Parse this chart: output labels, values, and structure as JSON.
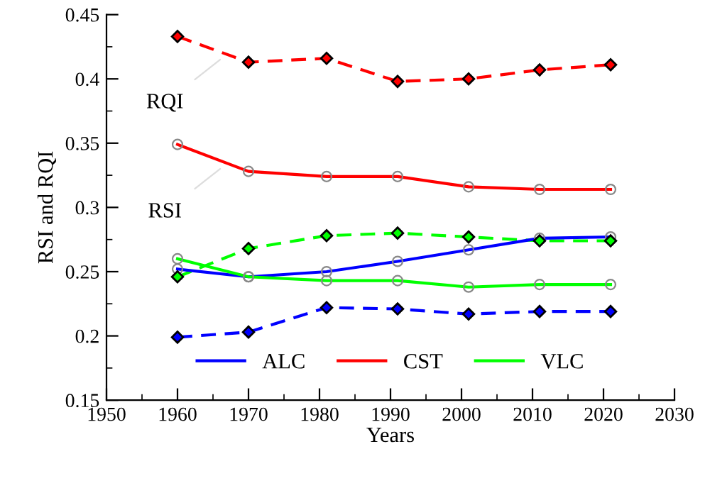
{
  "chart_data": {
    "type": "line",
    "xlabel": "Years",
    "ylabel": "RSI and RQI",
    "x": [
      1960,
      1970,
      1981,
      1991,
      2001,
      2011,
      2021
    ],
    "series": [
      {
        "name": "ALC",
        "color": "#0000ff",
        "line_style": "solid",
        "marker": "circle",
        "values": [
          0.252,
          0.246,
          0.25,
          0.258,
          0.267,
          0.276,
          0.277
        ]
      },
      {
        "name": "CST",
        "color": "#ff0000",
        "line_style": "solid",
        "marker": "circle",
        "values": [
          0.349,
          0.328,
          0.324,
          0.324,
          0.316,
          0.314,
          0.314
        ]
      },
      {
        "name": "VLC",
        "color": "#00ff00",
        "line_style": "solid",
        "marker": "circle",
        "values": [
          0.26,
          0.246,
          0.243,
          0.243,
          0.238,
          0.24,
          0.24
        ]
      },
      {
        "color": "#0000ff",
        "line_style": "dashed",
        "marker": "diamond",
        "values": [
          0.199,
          0.203,
          0.222,
          0.221,
          0.217,
          0.219,
          0.219
        ]
      },
      {
        "color": "#ff0000",
        "line_style": "dashed",
        "marker": "diamond",
        "values": [
          0.433,
          0.413,
          0.416,
          0.398,
          0.4,
          0.407,
          0.411
        ]
      },
      {
        "color": "#00ff00",
        "line_style": "dashed",
        "marker": "diamond",
        "values": [
          0.246,
          0.268,
          0.278,
          0.28,
          0.277,
          0.274,
          0.274
        ]
      }
    ],
    "annotations": [
      {
        "text": "RQI",
        "x": 1966,
        "y": 0.415
      },
      {
        "text": "RSI",
        "x": 1966,
        "y": 0.33
      }
    ],
    "xlim": [
      1950,
      2030
    ],
    "xticks": [
      1950,
      1960,
      1970,
      1980,
      1990,
      2000,
      2010,
      2020,
      2030
    ],
    "ylim": [
      0.15,
      0.45
    ],
    "yticks": [
      0.15,
      0.2,
      0.25,
      0.3,
      0.35,
      0.4,
      0.45
    ],
    "grid": false,
    "legend": "bottom"
  }
}
